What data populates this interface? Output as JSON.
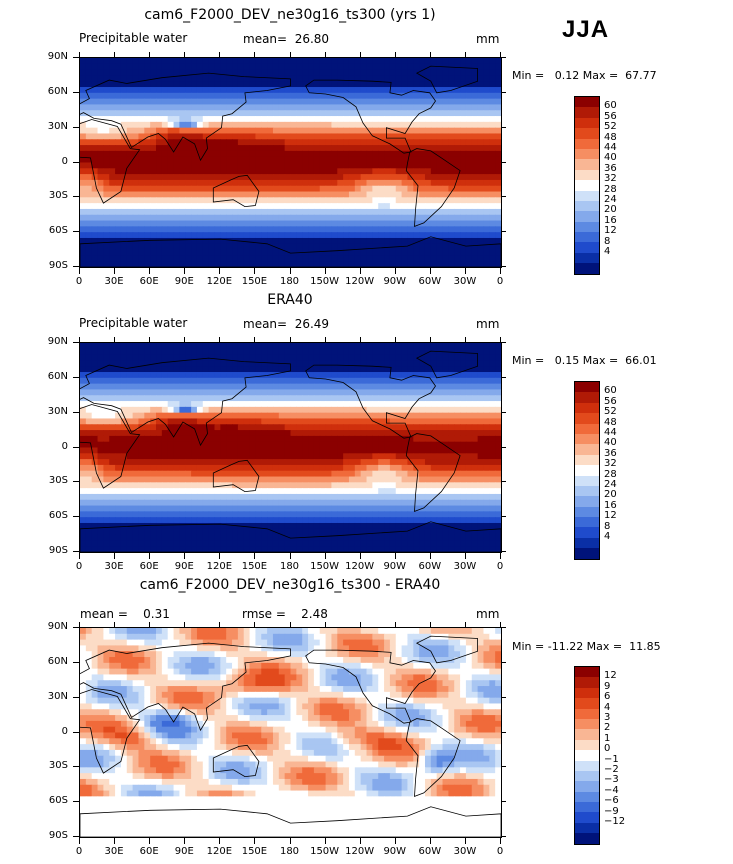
{
  "season": "JJA",
  "panels": [
    {
      "title": "cam6_F2000_DEV_ne30g16_ts300 (yrs 1)",
      "left_text": "Precipitable water",
      "center_text": "mean=  26.80",
      "right_text": "mm",
      "minmax": "Min =   0.12 Max =  67.77",
      "colorbar_labels": [
        "60",
        "56",
        "52",
        "48",
        "44",
        "40",
        "36",
        "32",
        "28",
        "24",
        "20",
        "16",
        "12",
        "8",
        "4"
      ],
      "colors": [
        "#8b0000",
        "#b01a06",
        "#cf2f0c",
        "#e24a1c",
        "#f06a3a",
        "#f68e62",
        "#f9b694",
        "#fcdcc6",
        "#ffffff",
        "#cfe1f8",
        "#a9c6f2",
        "#84a9eb",
        "#5d8ae2",
        "#3b6ad8",
        "#1f4bcc",
        "#0a2fa6",
        "#00137a"
      ]
    },
    {
      "title": "ERA40",
      "left_text": "Precipitable water",
      "center_text": "mean=  26.49",
      "right_text": "mm",
      "minmax": "Min =   0.15 Max =  66.01",
      "colorbar_labels": [
        "60",
        "56",
        "52",
        "48",
        "44",
        "40",
        "36",
        "32",
        "28",
        "24",
        "20",
        "16",
        "12",
        "8",
        "4"
      ],
      "colors": [
        "#8b0000",
        "#b01a06",
        "#cf2f0c",
        "#e24a1c",
        "#f06a3a",
        "#f68e62",
        "#f9b694",
        "#fcdcc6",
        "#ffffff",
        "#cfe1f8",
        "#a9c6f2",
        "#84a9eb",
        "#5d8ae2",
        "#3b6ad8",
        "#1f4bcc",
        "#0a2fa6",
        "#00137a"
      ]
    },
    {
      "title": "cam6_F2000_DEV_ne30g16_ts300 - ERA40",
      "left_text": "mean =    0.31",
      "center_text": "rmse =    2.48",
      "right_text": "mm",
      "minmax": "Min = -11.22 Max =  11.85",
      "colorbar_labels": [
        "12",
        "9",
        "6",
        "4",
        "3",
        "2",
        "1",
        "0",
        "−1",
        "−2",
        "−3",
        "−4",
        "−6",
        "−9",
        "−12"
      ],
      "colors": [
        "#8b0000",
        "#b01a06",
        "#cf2f0c",
        "#e24a1c",
        "#f06a3a",
        "#f68e62",
        "#f9b694",
        "#fcdcc6",
        "#ffffff",
        "#cfe1f8",
        "#a9c6f2",
        "#84a9eb",
        "#5d8ae2",
        "#3b6ad8",
        "#1f4bcc",
        "#0a2fa6",
        "#00137a"
      ]
    }
  ],
  "lat_labels": [
    "90N",
    "60N",
    "30N",
    "0",
    "30S",
    "60S",
    "90S"
  ],
  "lon_labels": [
    "0",
    "30E",
    "60E",
    "90E",
    "120E",
    "150E",
    "180",
    "150W",
    "120W",
    "90W",
    "60W",
    "30W",
    "0"
  ]
}
